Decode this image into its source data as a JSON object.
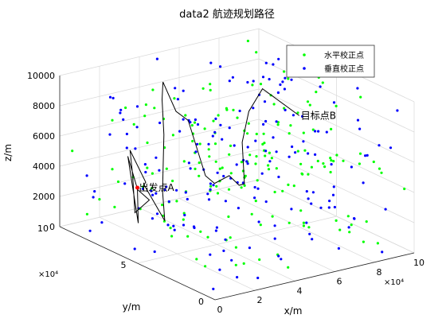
{
  "chart_data": {
    "type": "scatter",
    "title": "data2 航迹规划路径",
    "xlabel": "x/m",
    "ylabel": "y/m",
    "zlabel": "z/m",
    "xlim": [
      0,
      100000
    ],
    "ylim": [
      0,
      100000
    ],
    "zlim": [
      0,
      10000
    ],
    "x_ticks": [
      "0",
      "2",
      "4",
      "6",
      "8",
      "10"
    ],
    "y_ticks": [
      "0",
      "5",
      "10"
    ],
    "z_ticks": [
      "0",
      "2000",
      "4000",
      "6000",
      "8000",
      "10000"
    ],
    "x_exponent": "×10⁴",
    "y_exponent": "×10⁴",
    "grid": true,
    "legend_position": "top-right",
    "series": [
      {
        "name": "水平校正点",
        "color": "#00ff00",
        "marker": "dot",
        "approx_count": 180
      },
      {
        "name": "垂直校正点",
        "color": "#0000ff",
        "marker": "dot",
        "approx_count": 180
      }
    ],
    "path": {
      "color": "#000000",
      "points": [
        {
          "x": 0,
          "y": 50000,
          "z": 5000
        },
        {
          "x": 2000,
          "y": 52000,
          "z": 2500
        },
        {
          "x": 3000,
          "y": 60000,
          "z": 6500
        },
        {
          "x": 4000,
          "y": 55000,
          "z": 4500
        },
        {
          "x": 6000,
          "y": 50000,
          "z": 4000
        },
        {
          "x": 5000,
          "y": 58000,
          "z": 2800
        },
        {
          "x": 7000,
          "y": 62000,
          "z": 5000
        },
        {
          "x": 8000,
          "y": 65000,
          "z": 6500
        },
        {
          "x": 12000,
          "y": 60000,
          "z": 4500
        },
        {
          "x": 15000,
          "y": 65000,
          "z": 4000
        },
        {
          "x": 20000,
          "y": 58000,
          "z": 1800
        },
        {
          "x": 22000,
          "y": 62000,
          "z": 3500
        },
        {
          "x": 25000,
          "y": 65000,
          "z": 7000
        },
        {
          "x": 28000,
          "y": 70000,
          "z": 9000
        },
        {
          "x": 30000,
          "y": 72000,
          "z": 10000
        },
        {
          "x": 35000,
          "y": 70000,
          "z": 8000
        },
        {
          "x": 38000,
          "y": 66000,
          "z": 7500
        },
        {
          "x": 42000,
          "y": 60000,
          "z": 4000
        },
        {
          "x": 45000,
          "y": 58000,
          "z": 3500
        },
        {
          "x": 50000,
          "y": 55000,
          "z": 4000
        },
        {
          "x": 55000,
          "y": 55000,
          "z": 3200
        },
        {
          "x": 60000,
          "y": 58000,
          "z": 3000
        },
        {
          "x": 62000,
          "y": 62000,
          "z": 5500
        },
        {
          "x": 70000,
          "y": 68000,
          "z": 7000
        },
        {
          "x": 80000,
          "y": 72000,
          "z": 8000
        },
        {
          "x": 100000,
          "y": 74000,
          "z": 5500
        }
      ]
    },
    "annotations": {
      "start": {
        "label": "出发点A",
        "x": 0,
        "y": 50000,
        "z": 5000
      },
      "end": {
        "label": "目标点B",
        "x": 100000,
        "y": 74000,
        "z": 5500
      }
    }
  }
}
